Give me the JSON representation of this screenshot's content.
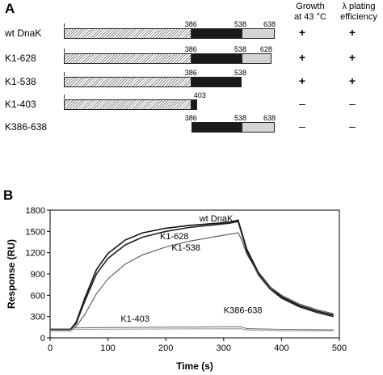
{
  "panel_a": {
    "letter": "A",
    "col_growth": "Growth at 43 °C",
    "col_growth_l1": "Growth",
    "col_growth_l2": "at 43 °C",
    "col_plating_l1": "λ plating",
    "col_plating_l2": "efficiency",
    "constructs": [
      {
        "label": "wt DnaK",
        "start": 1,
        "end": 638,
        "marks": [
          "386",
          "538",
          "638"
        ],
        "growth": "+",
        "plating": "+"
      },
      {
        "label": "K1-628",
        "start": 1,
        "end": 628,
        "marks": [
          "386",
          "538",
          "628"
        ],
        "growth": "+",
        "plating": "+"
      },
      {
        "label": "K1-538",
        "start": 1,
        "end": 538,
        "marks": [
          "386",
          "538"
        ],
        "growth": "+",
        "plating": "+"
      },
      {
        "label": "K1-403",
        "start": 1,
        "end": 403,
        "marks": [
          "403"
        ],
        "growth": "–",
        "plating": "–"
      },
      {
        "label": "K386-638",
        "start": 386,
        "end": 638,
        "marks": [
          "386",
          "538",
          "638"
        ],
        "growth": "–",
        "plating": "–"
      }
    ],
    "domain_boundaries": [
      386,
      538,
      638
    ]
  },
  "panel_b": {
    "letter": "B"
  },
  "chart_data": {
    "type": "line",
    "xlabel": "Time (s)",
    "ylabel": "Response (RU)",
    "xlim": [
      0,
      500
    ],
    "ylim": [
      0,
      1800
    ],
    "xticks": [
      0,
      100,
      200,
      300,
      400,
      500
    ],
    "yticks": [
      0,
      300,
      600,
      900,
      1200,
      1500,
      1800
    ],
    "ytick_labels": [
      "0",
      "300",
      "600",
      "900",
      "1200",
      "1500",
      "1800"
    ],
    "grid": false,
    "series": [
      {
        "name": "wt DnaK",
        "color": "#111111",
        "x": [
          0,
          35,
          45,
          60,
          80,
          100,
          130,
          160,
          200,
          240,
          280,
          310,
          325,
          330,
          340,
          360,
          380,
          400,
          430,
          460,
          490
        ],
        "y": [
          120,
          120,
          220,
          560,
          960,
          1190,
          1380,
          1480,
          1545,
          1585,
          1610,
          1630,
          1660,
          1520,
          1250,
          920,
          720,
          580,
          460,
          380,
          320
        ]
      },
      {
        "name": "K1-628",
        "color": "#222222",
        "x": [
          0,
          35,
          45,
          60,
          80,
          100,
          130,
          160,
          200,
          240,
          280,
          310,
          325,
          330,
          340,
          360,
          380,
          400,
          430,
          460,
          490
        ],
        "y": [
          120,
          120,
          200,
          520,
          900,
          1120,
          1310,
          1420,
          1500,
          1555,
          1590,
          1615,
          1640,
          1500,
          1220,
          890,
          690,
          560,
          440,
          360,
          300
        ]
      },
      {
        "name": "K1-538",
        "color": "#555555",
        "x": [
          0,
          35,
          45,
          60,
          80,
          100,
          130,
          160,
          200,
          240,
          280,
          310,
          325,
          330,
          340,
          360,
          380,
          400,
          430,
          460,
          490
        ],
        "y": [
          110,
          110,
          160,
          330,
          620,
          830,
          1040,
          1170,
          1280,
          1360,
          1420,
          1460,
          1480,
          1400,
          1180,
          900,
          720,
          600,
          480,
          400,
          340
        ]
      },
      {
        "name": "K1-403",
        "color": "#777777",
        "x": [
          0,
          35,
          40,
          100,
          200,
          300,
          330,
          340,
          400,
          490
        ],
        "y": [
          110,
          110,
          140,
          145,
          150,
          155,
          155,
          130,
          120,
          115
        ]
      },
      {
        "name": "K386-638",
        "color": "#999999",
        "x": [
          0,
          35,
          40,
          100,
          200,
          300,
          330,
          340,
          400,
          490
        ],
        "y": [
          95,
          95,
          120,
          122,
          125,
          128,
          128,
          110,
          100,
          98
        ]
      }
    ],
    "annotations": [
      {
        "text": "wt DnaK",
        "x": 258,
        "y": 1640
      },
      {
        "text": "K1-628",
        "x": 190,
        "y": 1390
      },
      {
        "text": "K1-538",
        "x": 210,
        "y": 1230
      },
      {
        "text": "K1-403",
        "x": 122,
        "y": 230
      },
      {
        "text": "K386-638",
        "x": 300,
        "y": 350
      }
    ]
  }
}
